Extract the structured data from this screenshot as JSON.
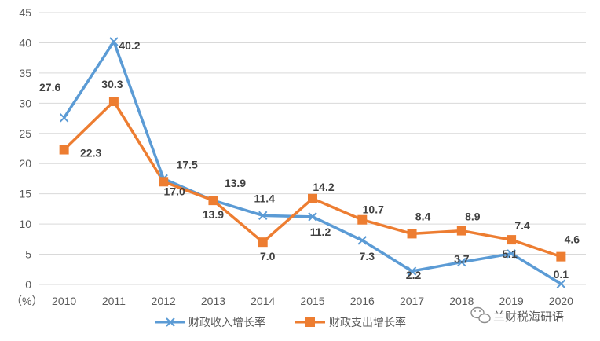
{
  "chart_data": {
    "type": "line",
    "categories": [
      "2010",
      "2011",
      "2012",
      "2013",
      "2014",
      "2015",
      "2016",
      "2017",
      "2018",
      "2019",
      "2020"
    ],
    "unit_label": "（%）",
    "ylim": [
      0,
      45
    ],
    "yticks": [
      0,
      5,
      10,
      15,
      20,
      25,
      30,
      35,
      40,
      45
    ],
    "grid": true,
    "legend_position": "bottom",
    "series": [
      {
        "name": "财政收入增长率",
        "color": "#5B9BD5",
        "marker": "x",
        "values": [
          27.6,
          40.2,
          17.5,
          13.9,
          11.4,
          11.2,
          7.3,
          2.2,
          3.7,
          5.1,
          0.1
        ]
      },
      {
        "name": "财政支出增长率",
        "color": "#ED7D31",
        "marker": "square",
        "values": [
          22.3,
          30.3,
          17.0,
          13.9,
          7.0,
          14.2,
          10.7,
          8.4,
          8.9,
          7.4,
          4.6
        ]
      }
    ]
  },
  "watermark": {
    "text": "兰财税海研语",
    "icon": "wechat-icon"
  }
}
